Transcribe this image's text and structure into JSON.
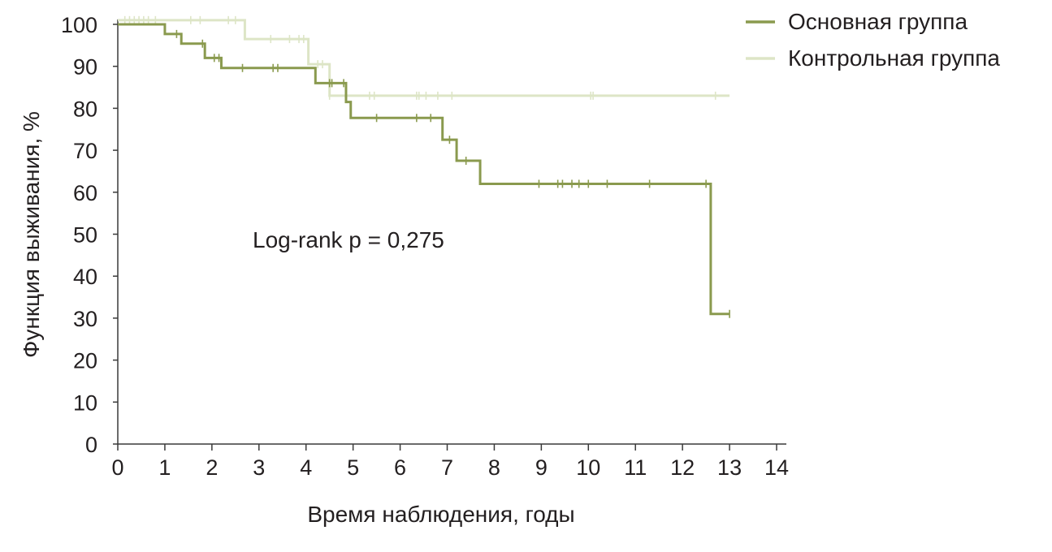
{
  "chart_data": {
    "type": "line",
    "title": "",
    "xlabel": "Время наблюдения, годы",
    "ylabel": "Функция выживания, %",
    "xlim": [
      0,
      14
    ],
    "ylim": [
      0,
      100
    ],
    "x_ticks": [
      0,
      1,
      2,
      3,
      4,
      5,
      6,
      7,
      8,
      9,
      10,
      11,
      12,
      13,
      14
    ],
    "y_ticks": [
      0,
      10,
      20,
      30,
      40,
      50,
      60,
      70,
      80,
      90,
      100
    ],
    "grid": false,
    "legend_position": "top-right",
    "annotation": "Log-rank p = 0,275",
    "series": [
      {
        "name": "Основная группа",
        "color": "#8a9a4e",
        "step_points": [
          [
            0,
            100
          ],
          [
            1.0,
            97.7
          ],
          [
            1.35,
            95.4
          ],
          [
            1.85,
            92.0
          ],
          [
            2.2,
            89.6
          ],
          [
            4.2,
            86.0
          ],
          [
            4.85,
            81.5
          ],
          [
            4.95,
            77.7
          ],
          [
            6.9,
            72.5
          ],
          [
            7.2,
            67.5
          ],
          [
            7.7,
            62.0
          ],
          [
            12.6,
            31.0
          ],
          [
            13.0,
            31.0
          ]
        ],
        "censored_x": [
          1.25,
          1.8,
          2.05,
          2.15,
          2.65,
          3.3,
          3.4,
          4.5,
          4.55,
          4.8,
          5.5,
          6.35,
          6.65,
          7.05,
          7.4,
          8.95,
          9.35,
          9.45,
          9.65,
          9.8,
          10.0,
          10.4,
          11.3,
          12.5,
          13.0
        ]
      },
      {
        "name": "Контрольная группа",
        "color": "#dde5c6",
        "step_points": [
          [
            0,
            101
          ],
          [
            2.7,
            101
          ],
          [
            2.7,
            96.5
          ],
          [
            4.05,
            90.5
          ],
          [
            4.5,
            83.0
          ],
          [
            13.0,
            83.0
          ]
        ],
        "censored_x": [
          0.15,
          0.25,
          0.35,
          0.45,
          0.55,
          0.65,
          0.8,
          1.55,
          1.75,
          2.35,
          2.5,
          3.25,
          3.65,
          3.85,
          3.95,
          4.25,
          4.35,
          4.5,
          5.35,
          5.45,
          6.35,
          6.4,
          6.55,
          6.8,
          7.1,
          10.05,
          10.1,
          12.7
        ]
      }
    ]
  }
}
